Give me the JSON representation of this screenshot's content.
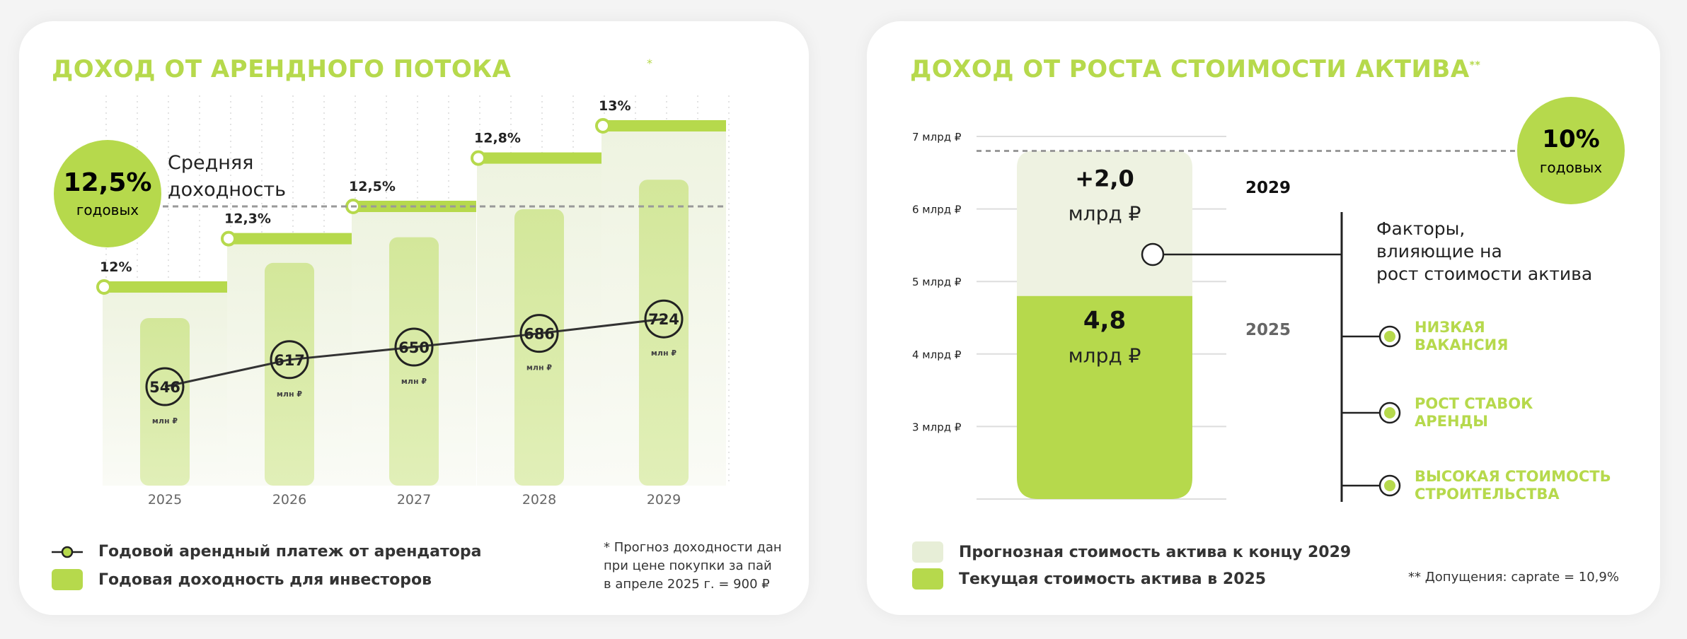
{
  "left": {
    "title": "ДОХОД ОТ АРЕНДНОГО ПОТОКА",
    "title_mark": "*",
    "avg_badge": {
      "value": "12,5%",
      "unit": "годовых"
    },
    "avg_label_line1": "Средняя",
    "avg_label_line2": "доходность",
    "legend": [
      {
        "label": "Годовой арендный платеж от арендатора",
        "icon": "line-marker-icon"
      },
      {
        "label": "Годовая доходность для инвесторов",
        "icon": "green-swatch-icon"
      }
    ],
    "footnote": [
      "* Прогноз доходности дан",
      "при цене покупки за пай",
      "в апреле 2025 г. = 900 ₽"
    ]
  },
  "right": {
    "title": "ДОХОД ОТ РОСТА СТОИМОСТИ АКТИВА",
    "title_mark": "**",
    "badge": {
      "value": "10%",
      "unit": "годовых"
    },
    "factors_title": [
      "Факторы,",
      "влияющие на",
      "рост стоимости актива"
    ],
    "factors": [
      "НИЗКАЯ|ВАКАНСИЯ",
      "РОСТ СТАВОК|АРЕНДЫ",
      "ВЫСОКАЯ СТОИМОСТЬ|СТРОИТЕЛЬСТВА"
    ],
    "legend": [
      {
        "label": "Прогнозная стоимость актива к концу 2029"
      },
      {
        "label": "Текущая стоимость актива в 2025"
      }
    ],
    "footnote": "** Допущения: caprate = 10,9%"
  },
  "colors": {
    "accent": "#b6d94c",
    "bar_light": "#d9eba3",
    "forecast": "#eef2e1",
    "text": "#222222"
  },
  "chart_data": [
    {
      "type": "bar+line+step",
      "title": "ДОХОД ОТ АРЕНДНОГО ПОТОКА",
      "categories": [
        "2025",
        "2026",
        "2027",
        "2028",
        "2029"
      ],
      "series": [
        {
          "name": "Годовой арендный платеж от арендатора",
          "type": "line",
          "values": [
            546,
            617,
            650,
            686,
            724
          ],
          "unit": "млн ₽"
        },
        {
          "name": "Годовая доходность для инвесторов",
          "type": "step",
          "values": [
            12,
            12.3,
            12.5,
            12.8,
            13
          ],
          "labels": [
            "12%",
            "12,3%",
            "12,5%",
            "12,8%",
            "13%"
          ]
        }
      ],
      "reference_line": {
        "value": 12.5,
        "label": "Средняя доходность",
        "style": "dashed"
      },
      "grid": "vertical dotted"
    },
    {
      "type": "stacked-bar",
      "title": "ДОХОД ОТ РОСТА СТОИМОСТИ АКТИВА",
      "yticks": [
        3,
        4,
        5,
        6,
        7
      ],
      "ytick_labels": [
        "3 млрд ₽",
        "4 млрд ₽",
        "5 млрд ₽",
        "6 млрд ₽",
        "7 млрд ₽"
      ],
      "segments": [
        {
          "name": "Текущая стоимость актива в 2025",
          "year": "2025",
          "value": 4.8,
          "label": "4,8",
          "unit": "млрд ₽"
        },
        {
          "name": "Прогнозная стоимость актива к концу 2029",
          "year": "2029",
          "value": 2.0,
          "label": "+2,0",
          "unit": "млрд ₽"
        }
      ],
      "reference_line": {
        "value": 6.8,
        "label": "10% годовых",
        "style": "dashed"
      },
      "grid": "horizontal"
    }
  ]
}
